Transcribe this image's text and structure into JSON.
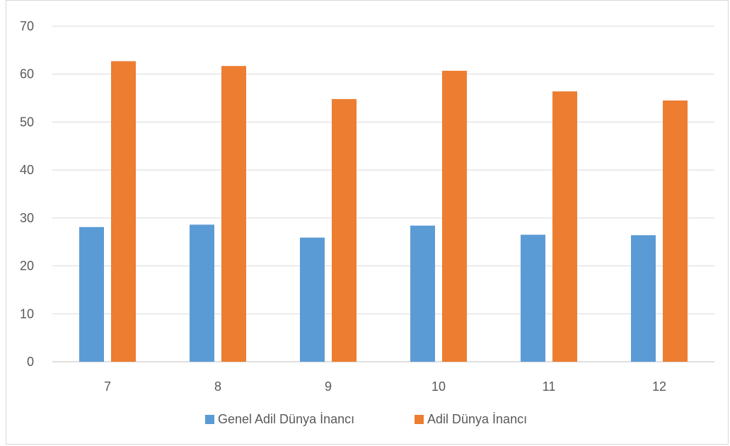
{
  "chart_data": {
    "type": "bar",
    "categories": [
      "7",
      "8",
      "9",
      "10",
      "11",
      "12"
    ],
    "series": [
      {
        "name": "Genel Adil Dünya İnancı",
        "color": "#5b9bd5",
        "values": [
          28.1,
          28.6,
          25.9,
          28.4,
          26.5,
          26.4
        ]
      },
      {
        "name": "Adil Dünya İnancı",
        "color": "#ed7d31",
        "values": [
          62.7,
          61.7,
          54.8,
          60.7,
          56.4,
          54.5
        ]
      }
    ],
    "ylim": [
      0,
      70
    ],
    "yticks": [
      "0",
      "10",
      "20",
      "30",
      "40",
      "50",
      "60",
      "70"
    ],
    "grid": true,
    "legend": "bottom",
    "gridColor": "#d9d9d9",
    "axisColor": "#bfbfbf"
  }
}
